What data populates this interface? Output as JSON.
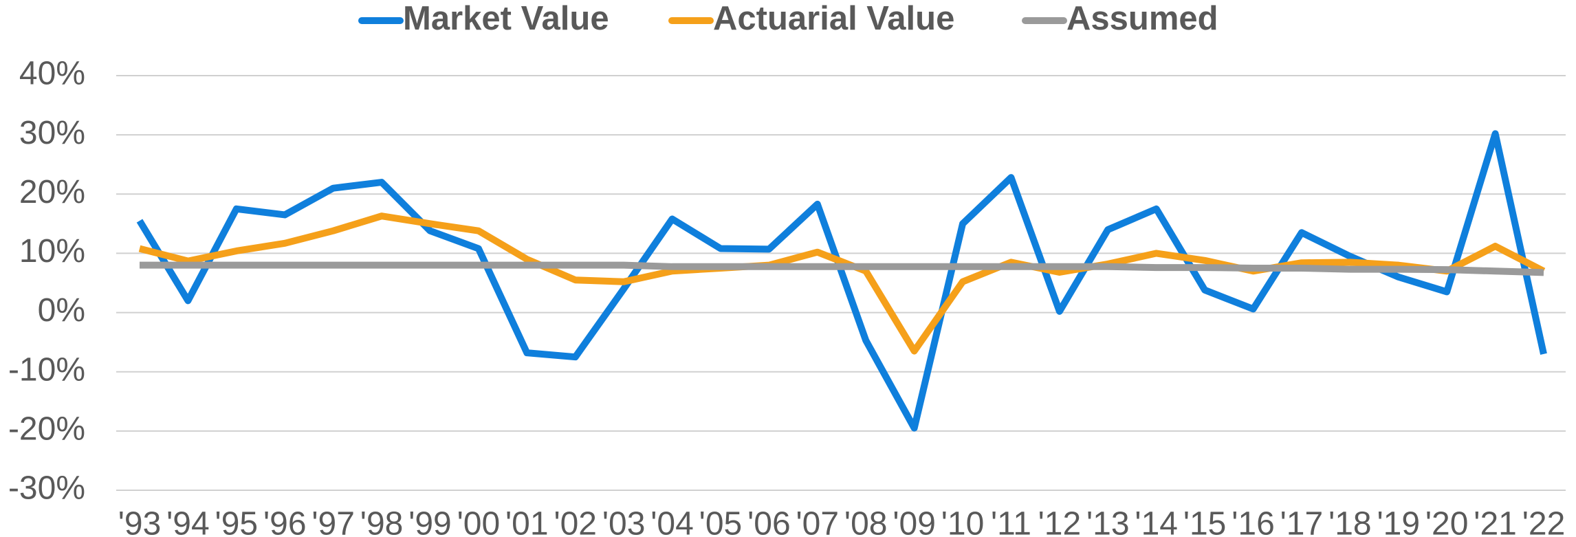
{
  "chart_data": {
    "type": "line",
    "categories": [
      "'93",
      "'94",
      "'95",
      "'96",
      "'97",
      "'98",
      "'99",
      "'00",
      "'01",
      "'02",
      "'03",
      "'04",
      "'05",
      "'06",
      "'07",
      "'08",
      "'09",
      "'10",
      "'11",
      "'12",
      "'13",
      "'14",
      "'15",
      "'16",
      "'17",
      "'18",
      "'19",
      "'20",
      "'21",
      "'22"
    ],
    "series": [
      {
        "name": "Market Value",
        "color": "#0f7fdc",
        "values": [
          15.5,
          2,
          17.5,
          16.5,
          21,
          22,
          13.8,
          10.8,
          -6.8,
          -7.5,
          4,
          15.8,
          10.8,
          10.7,
          18.3,
          -4.7,
          -19.5,
          15,
          22.8,
          0.2,
          14,
          17.5,
          3.8,
          0.6,
          13.5,
          9.5,
          6,
          3.5,
          30.2,
          -7
        ]
      },
      {
        "name": "Actuarial Value",
        "color": "#f5a01a",
        "values": [
          10.8,
          8.7,
          10.4,
          11.7,
          13.8,
          16.3,
          15,
          13.8,
          9,
          5.5,
          5.2,
          7,
          7.5,
          8,
          10.2,
          7,
          -6.5,
          5.2,
          8.5,
          6.8,
          8.2,
          10,
          8.8,
          7,
          8.4,
          8.5,
          8,
          7,
          11.2,
          7
        ]
      },
      {
        "name": "Assumed",
        "color": "#9a9a9a",
        "values": [
          8,
          8,
          8,
          8,
          8,
          8,
          8,
          8,
          8,
          8,
          8,
          7.75,
          7.75,
          7.75,
          7.75,
          7.75,
          7.75,
          7.75,
          7.75,
          7.75,
          7.75,
          7.6,
          7.6,
          7.5,
          7.5,
          7.3,
          7.3,
          7.25,
          7,
          6.75
        ]
      }
    ],
    "ylim": [
      -30,
      40
    ],
    "yticks": [
      {
        "value": -30,
        "label": "-30%"
      },
      {
        "value": -20,
        "label": "-20%"
      },
      {
        "value": -10,
        "label": "-10%"
      },
      {
        "value": 0,
        "label": "0%"
      },
      {
        "value": 10,
        "label": "10%"
      },
      {
        "value": 20,
        "label": "20%"
      },
      {
        "value": 30,
        "label": "30%"
      },
      {
        "value": 40,
        "label": "40%"
      }
    ],
    "grid": true,
    "legend": "top"
  }
}
